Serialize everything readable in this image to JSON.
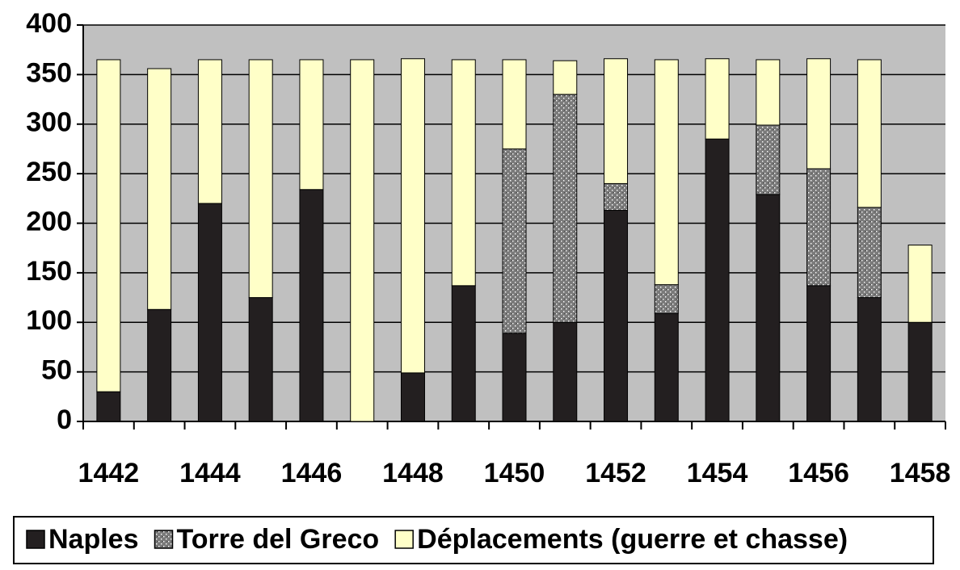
{
  "chart_data": {
    "type": "bar",
    "stacked": true,
    "categories": [
      "1442",
      null,
      "1444",
      null,
      "1446",
      null,
      "1448",
      null,
      "1450",
      null,
      "1452",
      null,
      "1454",
      null,
      "1456",
      null,
      "1458"
    ],
    "series": [
      {
        "name": "Naples",
        "color": "#231f20",
        "values": [
          30,
          113,
          220,
          125,
          234,
          0,
          49,
          137,
          89,
          100,
          213,
          109,
          285,
          229,
          137,
          125,
          100
        ]
      },
      {
        "name": "Torre del Greco",
        "color": "#7a7a7a",
        "pattern": "dots",
        "values": [
          0,
          0,
          0,
          0,
          0,
          0,
          0,
          0,
          186,
          230,
          27,
          29,
          0,
          70,
          118,
          91,
          0
        ]
      },
      {
        "name": "Déplacements (guerre et chasse)",
        "color": "#ffffc8",
        "values": [
          335,
          243,
          145,
          240,
          131,
          365,
          317,
          228,
          90,
          34,
          126,
          227,
          81,
          66,
          111,
          149,
          78
        ]
      }
    ],
    "ylim": [
      0,
      400
    ],
    "yticks": [
      0,
      50,
      100,
      150,
      200,
      250,
      300,
      350,
      400
    ],
    "grid": true,
    "background": "#c0c0c0",
    "legend": "bottom"
  }
}
